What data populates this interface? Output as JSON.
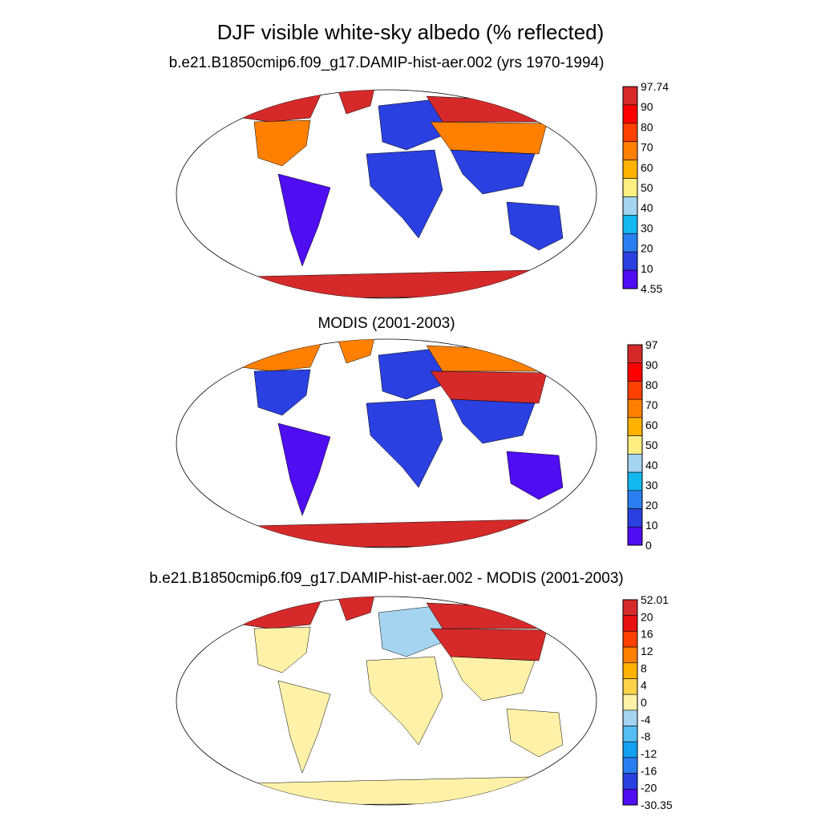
{
  "figure": {
    "title": "DJF visible white-sky albedo (% reflected)"
  },
  "chart_data": [
    {
      "type": "heatmap",
      "title": "b.e21.B1850cmip6.f09_g17.DAMIP-hist-aer.002 (yrs 1970-1994)",
      "projection": "Robinson",
      "colorbar": {
        "labels": [
          "97.74",
          "90",
          "80",
          "70",
          "60",
          "50",
          "40",
          "30",
          "20",
          "10",
          "4.55"
        ],
        "colors": [
          "#d62a2a",
          "#ff0000",
          "#ff4000",
          "#ff8000",
          "#ffb300",
          "#ffee82",
          "#a4d4f0",
          "#14b8f0",
          "#2b7eef",
          "#2a40e0",
          "#4f0df2"
        ]
      },
      "regions": [
        {
          "name": "North America (high latitude)",
          "level": "red"
        },
        {
          "name": "Greenland",
          "level": "red"
        },
        {
          "name": "North America (mid latitude)",
          "level": "orange"
        },
        {
          "name": "South America",
          "level": "violet"
        },
        {
          "name": "Africa",
          "level": "blue"
        },
        {
          "name": "Europe",
          "level": "blue"
        },
        {
          "name": "Siberia",
          "level": "red"
        },
        {
          "name": "Central Asia",
          "level": "orange"
        },
        {
          "name": "South Asia",
          "level": "blue"
        },
        {
          "name": "Australia",
          "level": "blue"
        },
        {
          "name": "Antarctica",
          "level": "red"
        }
      ]
    },
    {
      "type": "heatmap",
      "title": "MODIS (2001-2003)",
      "projection": "Robinson",
      "colorbar": {
        "labels": [
          "97",
          "90",
          "80",
          "70",
          "60",
          "50",
          "40",
          "30",
          "20",
          "10",
          "0"
        ],
        "colors": [
          "#d62a2a",
          "#ff0000",
          "#ff4000",
          "#ff8000",
          "#ffb300",
          "#ffee82",
          "#a4d4f0",
          "#14b8f0",
          "#2b7eef",
          "#2a40e0",
          "#4f0df2"
        ]
      },
      "regions": [
        {
          "name": "North America (high latitude)",
          "level": "orange"
        },
        {
          "name": "Greenland",
          "level": "orange"
        },
        {
          "name": "North America (mid latitude)",
          "level": "blue"
        },
        {
          "name": "South America",
          "level": "violet"
        },
        {
          "name": "Africa",
          "level": "blue"
        },
        {
          "name": "Europe",
          "level": "blue"
        },
        {
          "name": "Siberia",
          "level": "orange"
        },
        {
          "name": "Central Asia",
          "level": "red"
        },
        {
          "name": "South Asia",
          "level": "blue"
        },
        {
          "name": "Australia",
          "level": "violet"
        },
        {
          "name": "Antarctica",
          "level": "red"
        }
      ]
    },
    {
      "type": "heatmap",
      "title": "b.e21.B1850cmip6.f09_g17.DAMIP-hist-aer.002 - MODIS (2001-2003)",
      "projection": "Robinson",
      "colorbar": {
        "labels": [
          "52.01",
          "20",
          "16",
          "12",
          "8",
          "4",
          "0",
          "-4",
          "-8",
          "-12",
          "-16",
          "-20",
          "-30.35"
        ],
        "colors": [
          "#d62a2a",
          "#e81010",
          "#ff4000",
          "#ff8000",
          "#ffb300",
          "#ffd24a",
          "#fff2a8",
          "#a4d4f0",
          "#55bdf0",
          "#14a0f0",
          "#2b7eef",
          "#2a40e0",
          "#4f0df2"
        ]
      },
      "regions": [
        {
          "name": "North America (high latitude)",
          "level": "red"
        },
        {
          "name": "Greenland",
          "level": "red"
        },
        {
          "name": "North America (mid latitude)",
          "level": "lightyellow"
        },
        {
          "name": "South America",
          "level": "lightyellow"
        },
        {
          "name": "Africa",
          "level": "lightyellow"
        },
        {
          "name": "Europe",
          "level": "lightblue"
        },
        {
          "name": "Siberia",
          "level": "red"
        },
        {
          "name": "Central Asia",
          "level": "red"
        },
        {
          "name": "South Asia",
          "level": "lightyellow"
        },
        {
          "name": "Australia",
          "level": "lightyellow"
        },
        {
          "name": "Antarctica",
          "level": "lightyellow"
        }
      ]
    }
  ]
}
